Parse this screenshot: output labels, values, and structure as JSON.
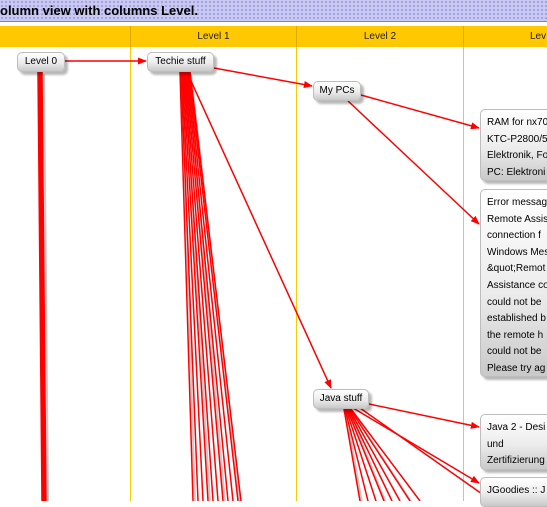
{
  "window": {
    "title": "olumn view with columns Level."
  },
  "columns": [
    {
      "label": ""
    },
    {
      "label": "Level 1"
    },
    {
      "label": "Level 2"
    },
    {
      "label": "Lev"
    }
  ],
  "nodes": {
    "level0": "Level 0",
    "techie": "Techie stuff",
    "mypcs": "My PCs",
    "java": "Java stuff",
    "ram_lines": [
      "RAM for nx70",
      "KTC-P2800/5",
      "Elektronik, Fo",
      "PC: Elektroni"
    ],
    "error_lines": [
      "Error messag",
      "Remote Assis",
      "connection f",
      "Windows Mes",
      "&quot;Remot",
      "Assistance co",
      "could not be",
      "established b",
      "the remote h",
      "could not be",
      "Please try ag"
    ],
    "java2_lines": [
      "Java 2 - Desi",
      "und",
      "Zertifizierung"
    ],
    "jgoodies_lines": [
      "JGoodies :: J"
    ]
  },
  "colors": {
    "edge": "#ff0000",
    "header": "#ffc800",
    "column_line": "#f2d000",
    "title_bar": "#c8c8f0"
  }
}
